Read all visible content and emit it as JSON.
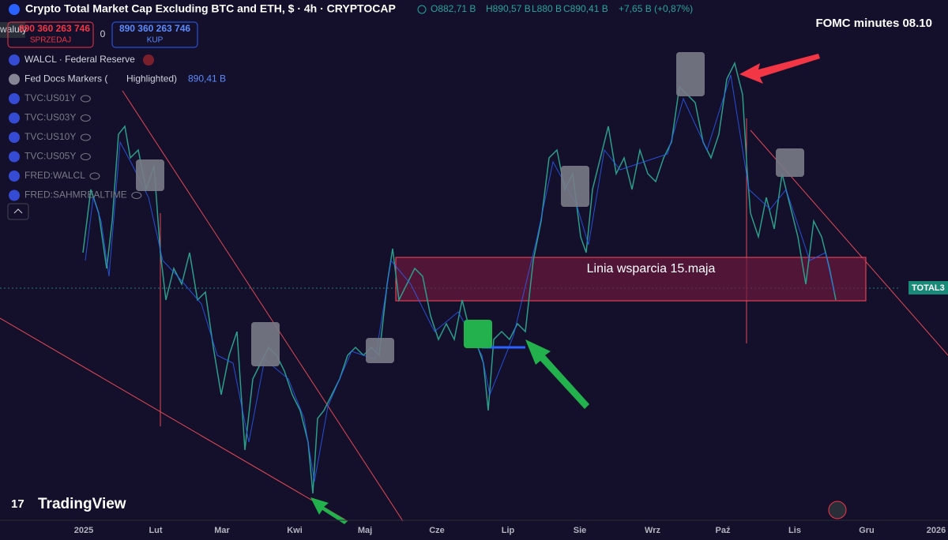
{
  "header": {
    "title": "Crypto Total Market Cap Excluding BTC and ETH, $ · 4h · CRYPTOCAP",
    "open": "O882,71 B",
    "high": "H890,57 B",
    "low": "L880 B",
    "close": "C890,41 B",
    "change": "+7,65 B (+0,87%)"
  },
  "trade": {
    "currency": "waluty",
    "sell_price": "890 360 263 746",
    "sell_label": "SPRZEDAJ",
    "spread": "0",
    "buy_price": "890 360 263 746",
    "buy_label": "KUP"
  },
  "indicators": [
    {
      "label": "WALCL · Federal Reserve"
    },
    {
      "label": "Fed Docs Markers (",
      "extra": "Highlighted)",
      "value": "890,41 B"
    },
    {
      "label": "TVC:US01Y"
    },
    {
      "label": "TVC:US03Y"
    },
    {
      "label": "TVC:US10Y"
    },
    {
      "label": "TVC:US05Y"
    },
    {
      "label": "FRED:WALCL"
    },
    {
      "label": "FRED:SAHMREALTIME"
    }
  ],
  "annotations": {
    "fomc": "FOMC minutes 08.10",
    "support": "Linia wsparcia 15.maja"
  },
  "price_tag": "TOTAL3",
  "logo": "TradingView",
  "x_axis": [
    "2025",
    "Lut",
    "Mar",
    "Kwi",
    "Maj",
    "Cze",
    "Lip",
    "Sie",
    "Wrz",
    "Paź",
    "Lis",
    "Gru",
    "2026"
  ]
}
